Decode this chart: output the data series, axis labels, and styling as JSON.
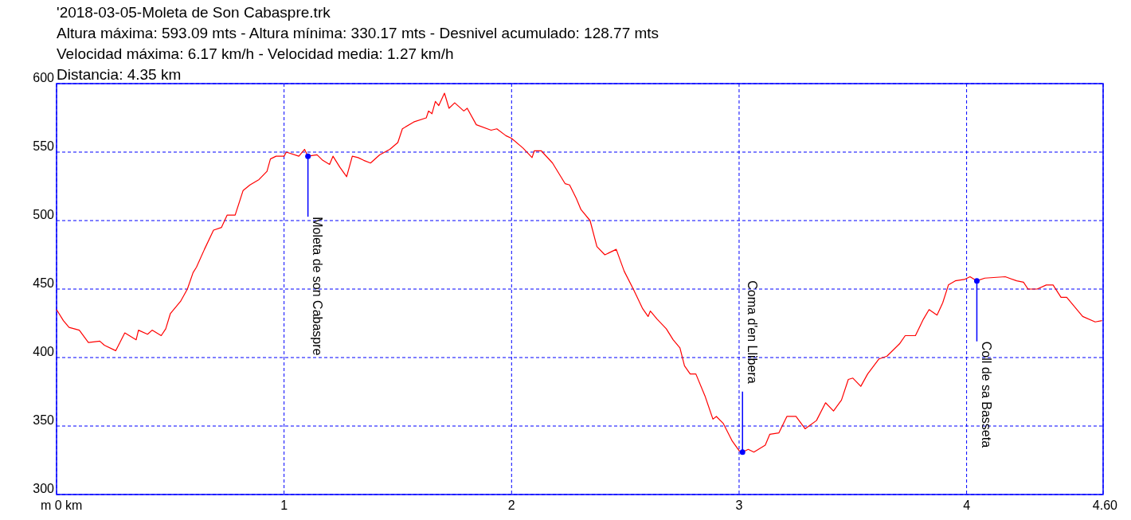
{
  "chart_data": {
    "type": "line",
    "title": "'2018-03-05-Moleta de Son Cabaspre.trk",
    "subtitle": "Altura máxima: 593.09 mts - Altura mínima: 330.17 mts - Desnivel acumulado: 128.77 mts\nVelocidad máxima: 6.17 km/h - Velocidad media: 1.27 km/h\nDistancia: 4.35 km",
    "xlim": [
      0,
      4.6
    ],
    "ylim": [
      300,
      600
    ],
    "xticks": [
      {
        "value": 0,
        "label": "m 0 km"
      },
      1,
      2,
      3,
      4,
      {
        "value": 4.6,
        "label": "4.60"
      }
    ],
    "yticks": [
      300,
      350,
      400,
      450,
      500,
      550,
      600
    ],
    "grid": true,
    "marker": "none",
    "line_style": "solid",
    "series": [
      {
        "color": "#ff0000",
        "x": [
          0,
          0.03,
          0.055,
          0.1,
          0.14,
          0.19,
          0.21,
          0.26,
          0.3,
          0.35,
          0.36,
          0.4,
          0.42,
          0.46,
          0.48,
          0.5,
          0.545,
          0.575,
          0.6,
          0.615,
          0.65,
          0.69,
          0.725,
          0.75,
          0.785,
          0.82,
          0.85,
          0.89,
          0.925,
          0.94,
          0.965,
          1.0,
          1.01,
          1.065,
          1.09,
          1.105,
          1.145,
          1.17,
          1.2,
          1.215,
          1.245,
          1.275,
          1.3,
          1.325,
          1.35,
          1.38,
          1.42,
          1.465,
          1.5,
          1.52,
          1.57,
          1.625,
          1.635,
          1.65,
          1.665,
          1.68,
          1.705,
          1.725,
          1.75,
          1.79,
          1.805,
          1.845,
          1.91,
          1.935,
          1.975,
          2.0,
          2.05,
          2.09,
          2.1,
          2.13,
          2.18,
          2.235,
          2.255,
          2.285,
          2.305,
          2.345,
          2.375,
          2.41,
          2.46,
          2.495,
          2.535,
          2.575,
          2.6,
          2.61,
          2.64,
          2.68,
          2.71,
          2.74,
          2.76,
          2.785,
          2.81,
          2.85,
          2.885,
          2.9,
          2.93,
          2.97,
          3.0,
          3.015,
          3.04,
          3.065,
          3.115,
          3.135,
          3.175,
          3.21,
          3.25,
          3.29,
          3.34,
          3.38,
          3.415,
          3.45,
          3.48,
          3.5,
          3.535,
          3.565,
          3.615,
          3.65,
          3.705,
          3.73,
          3.775,
          3.81,
          3.835,
          3.87,
          3.895,
          3.92,
          3.95,
          3.99,
          4.015,
          4.045,
          4.08,
          4.17,
          4.22,
          4.25,
          4.27,
          4.31,
          4.35,
          4.38,
          4.415,
          4.44,
          4.51,
          4.565,
          4.595
        ],
        "values": [
          435,
          427,
          422,
          420,
          411,
          412,
          409,
          405,
          418,
          413,
          420,
          417,
          420,
          416,
          421,
          432,
          441,
          450,
          462,
          466,
          479,
          493,
          495,
          504,
          504,
          522,
          526,
          530,
          536,
          545,
          547,
          547,
          550,
          547,
          552,
          547,
          548,
          544,
          541,
          547,
          539,
          532,
          547,
          546,
          544,
          542,
          548,
          552,
          557,
          567,
          572,
          575,
          580,
          578,
          587,
          584,
          593,
          582,
          586,
          580,
          582,
          570,
          566,
          567,
          562,
          560,
          553,
          546,
          551,
          551,
          542,
          527,
          526,
          516,
          508,
          500,
          481,
          475,
          479,
          463,
          450,
          436,
          430,
          434,
          428,
          421,
          413,
          407,
          394,
          388,
          388,
          372,
          355,
          357,
          352,
          339,
          332,
          331,
          333,
          331,
          336,
          344,
          345,
          357,
          357,
          348,
          354,
          367,
          361,
          369,
          384,
          385,
          379,
          388,
          399,
          401,
          410,
          416,
          416,
          428,
          435,
          431,
          440,
          453,
          456,
          457,
          459,
          456,
          458,
          459,
          456,
          455,
          450,
          450,
          453,
          453,
          444,
          444,
          430,
          426,
          427
        ]
      }
    ],
    "annotations": [
      {
        "text": "Moleta de son Cabaspre",
        "x": 1.105,
        "y": 547
      },
      {
        "text": "Coma d'en Llibera",
        "x": 3.015,
        "y": 331
      },
      {
        "text": "Coll de sa Basseta",
        "x": 4.045,
        "y": 456
      }
    ]
  }
}
